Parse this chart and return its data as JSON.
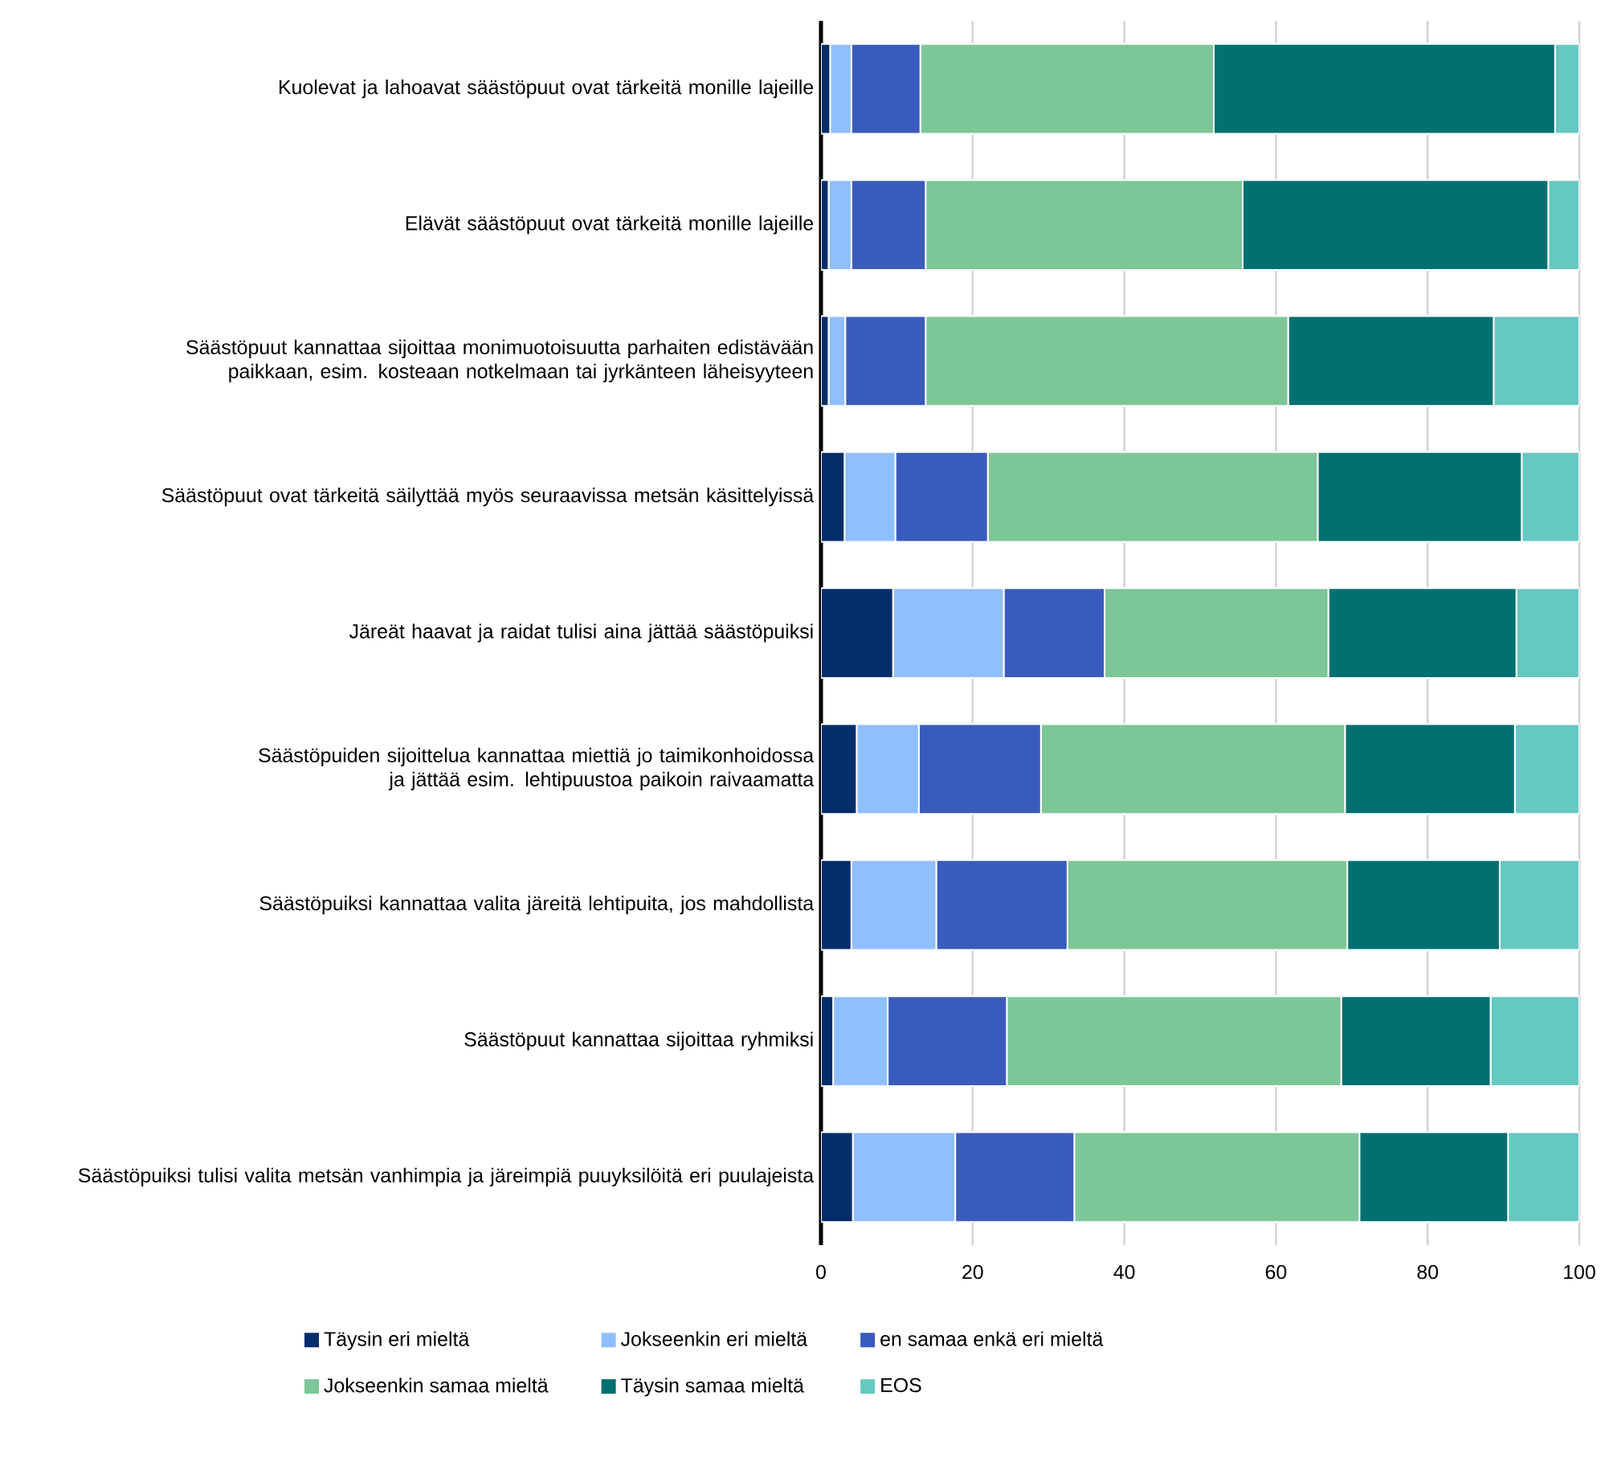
{
  "chart_data": {
    "type": "bar",
    "orientation": "horizontal",
    "stacked": true,
    "categories": [
      "Kuolevat ja lahoavat säästöpuut ovat tärkeitä monille lajeille",
      "Elävät säästöpuut ovat tärkeitä monille lajeille",
      "Säästöpuut kannattaa sijoittaa monimuotoisuutta parhaiten edistävään paikkaan, esim. kosteaan notkelmaan tai jyrkänteen läheisyyteen",
      "Säästöpuut ovat tärkeitä säilyttää myös seuraavissa metsän käsittelyissä",
      "Järeät haavat ja raidat tulisi aina jättää säästöpuiksi",
      "Säästöpuiden sijoittelua kannattaa miettiä jo taimikonhoidossa ja jättää esim. lehtipuustoa paikoin raivaamatta",
      "Säästöpuiksi kannattaa valita järeitä lehtipuita, jos mahdollista",
      "Säästöpuut kannattaa sijoittaa ryhmiksi",
      "Säästöpuiksi tulisi valita metsän vanhimpia ja järeimpiä puuyksilöitä eri puulajeista"
    ],
    "series": [
      {
        "name": "Täysin eri mieltä",
        "color": "#032d6b",
        "values": [
          1.2,
          1.0,
          1.0,
          3.1,
          9.5,
          4.7,
          4.0,
          1.6,
          4.2
        ]
      },
      {
        "name": "Jokseenkin eri mieltä",
        "color": "#8fbfff",
        "values": [
          2.8,
          3.0,
          2.2,
          6.7,
          14.6,
          8.2,
          11.2,
          7.2,
          13.5
        ]
      },
      {
        "name": "en samaa enkä eri mieltä",
        "color": "#3a5bbe",
        "values": [
          9.1,
          9.8,
          10.6,
          12.2,
          13.3,
          16.1,
          17.3,
          15.7,
          15.7
        ]
      },
      {
        "name": "Jokseenkin samaa mieltä",
        "color": "#7dc698",
        "values": [
          38.7,
          41.8,
          47.8,
          43.5,
          29.5,
          40.1,
          36.9,
          44.1,
          37.6
        ]
      },
      {
        "name": "Täysin samaa mieltä",
        "color": "#007070",
        "values": [
          45.0,
          40.3,
          27.1,
          26.9,
          24.8,
          22.4,
          20.1,
          19.7,
          19.6
        ]
      },
      {
        "name": "EOS",
        "color": "#66c8c2",
        "values": [
          3.2,
          4.1,
          11.3,
          7.6,
          8.3,
          8.5,
          10.5,
          11.7,
          9.4
        ]
      }
    ],
    "xlim": [
      0,
      100
    ],
    "xticks": [
      0,
      20,
      40,
      60,
      80,
      100
    ],
    "grid": "x",
    "legend": "bottom"
  }
}
